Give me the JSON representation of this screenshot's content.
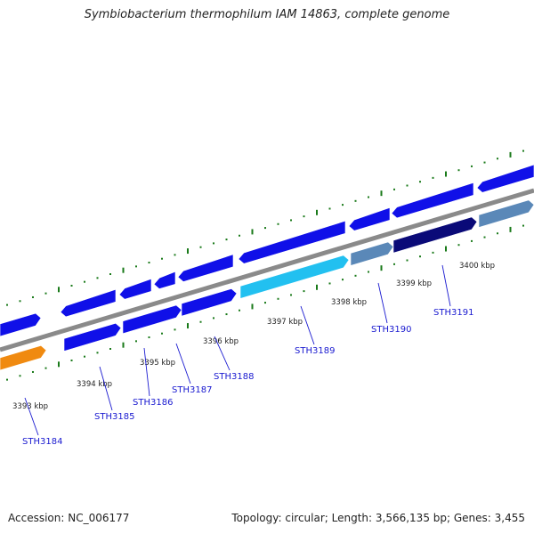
{
  "title": "Symbiobacterium thermophilum IAM 14863, complete genome",
  "accession": "Accession: NC_006177",
  "summary": "Topology: circular; Length: 3,566,135 bp; Genes: 3,455",
  "colors": {
    "backbone": "#8a8a8a",
    "gene_default": "#1010e8",
    "gene_cyan": "#22c0f0",
    "gene_orange": "#f08a10",
    "gene_steel": "#5a88b8",
    "gene_navy": "#0a0a78",
    "tick": "#1a7a1a",
    "label": "#1a1ad0"
  },
  "scale_labels": [
    "3393 kbp",
    "3394 kbp",
    "3395 kbp",
    "3396 kbp",
    "3397 kbp",
    "3398 kbp",
    "3399 kbp",
    "3400 kbp"
  ],
  "gene_labels": [
    "STH3184",
    "STH3185",
    "STH3186",
    "STH3187",
    "STH3188",
    "STH3189",
    "STH3190",
    "STH3191"
  ],
  "genes": [
    {
      "lane": "outer",
      "color": "gene_default",
      "dir": "+"
    },
    {
      "lane": "outer",
      "color": "gene_default",
      "dir": "-"
    },
    {
      "lane": "outer",
      "color": "gene_default",
      "dir": "-"
    },
    {
      "lane": "outer",
      "color": "gene_default",
      "dir": "-"
    },
    {
      "lane": "outer",
      "color": "gene_default",
      "dir": "-"
    },
    {
      "lane": "outer",
      "color": "gene_default",
      "dir": "-"
    },
    {
      "lane": "outer",
      "color": "gene_default",
      "dir": "-"
    },
    {
      "lane": "outer",
      "color": "gene_default",
      "dir": "-"
    },
    {
      "lane": "outer",
      "color": "gene_default",
      "dir": "-"
    },
    {
      "lane": "inner",
      "color": "gene_orange",
      "dir": "+"
    },
    {
      "lane": "inner",
      "color": "gene_default",
      "dir": "+"
    },
    {
      "lane": "inner",
      "color": "gene_default",
      "dir": "+"
    },
    {
      "lane": "inner",
      "color": "gene_default",
      "dir": "+"
    },
    {
      "lane": "inner",
      "color": "gene_cyan",
      "dir": "+"
    },
    {
      "lane": "inner",
      "color": "gene_steel",
      "dir": "+"
    },
    {
      "lane": "inner",
      "color": "gene_navy",
      "dir": "+"
    },
    {
      "lane": "inner",
      "color": "gene_steel",
      "dir": "+"
    }
  ]
}
